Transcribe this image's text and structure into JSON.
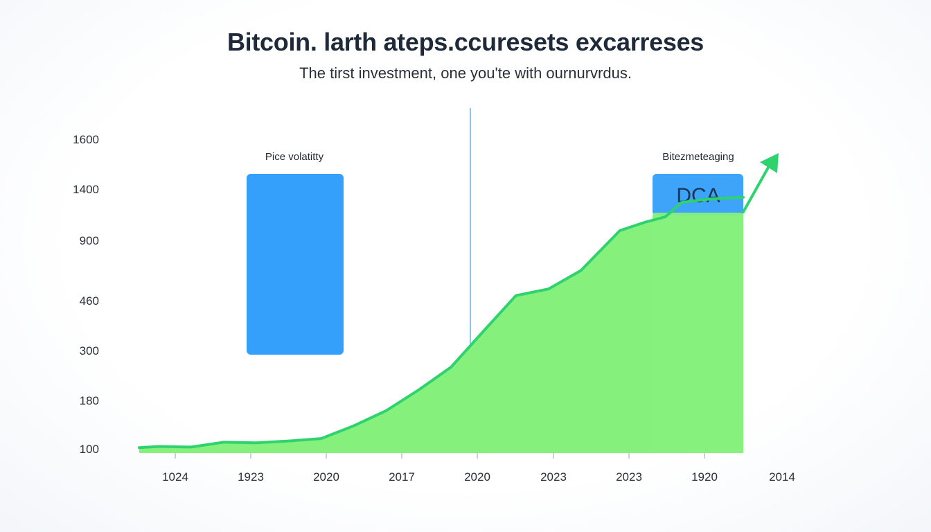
{
  "title": "Bitcoin. larth ateps.ccuresets excarreses",
  "subtitle": "The tirst investment, one you'te with ournurvrdus.",
  "colors": {
    "area_fill": "#86f07c",
    "line": "#2fd36e",
    "volatility_box": "#35a0fb",
    "dca_box_top": "#3ea4f9",
    "divider": "#5fb6f0"
  },
  "chart_data": {
    "type": "area",
    "y_tick_labels": [
      "1600",
      "1400",
      "900",
      "460",
      "300",
      "180",
      "100"
    ],
    "x_tick_labels": [
      "1024",
      "1923",
      "2020",
      "2017",
      "2020",
      "2023",
      "2023",
      "1920",
      "2014"
    ],
    "series": [
      {
        "values": [
          [
            0.2,
            102
          ],
          [
            0.5,
            104
          ],
          [
            1.0,
            103
          ],
          [
            1.5,
            111
          ],
          [
            2.0,
            110
          ],
          [
            2.5,
            113
          ],
          [
            3.0,
            117
          ],
          [
            3.5,
            138
          ],
          [
            4.0,
            163
          ],
          [
            4.5,
            205
          ],
          [
            5.0,
            260
          ],
          [
            5.5,
            362
          ],
          [
            6.0,
            497
          ],
          [
            6.5,
            545
          ],
          [
            7.0,
            680
          ],
          [
            7.6,
            995
          ],
          [
            8.0,
            1080
          ],
          [
            8.3,
            1130
          ],
          [
            8.55,
            1270
          ],
          [
            9.0,
            1305
          ],
          [
            9.5,
            1320
          ]
        ]
      }
    ],
    "annotations": [
      {
        "label": "Pice volatitty",
        "kind": "highlight-box"
      },
      {
        "label": "Bitezmeteaging",
        "kind": "highlight-box",
        "box_text": "DCA"
      }
    ],
    "trend_arrow": true,
    "vertical_divider": true
  }
}
